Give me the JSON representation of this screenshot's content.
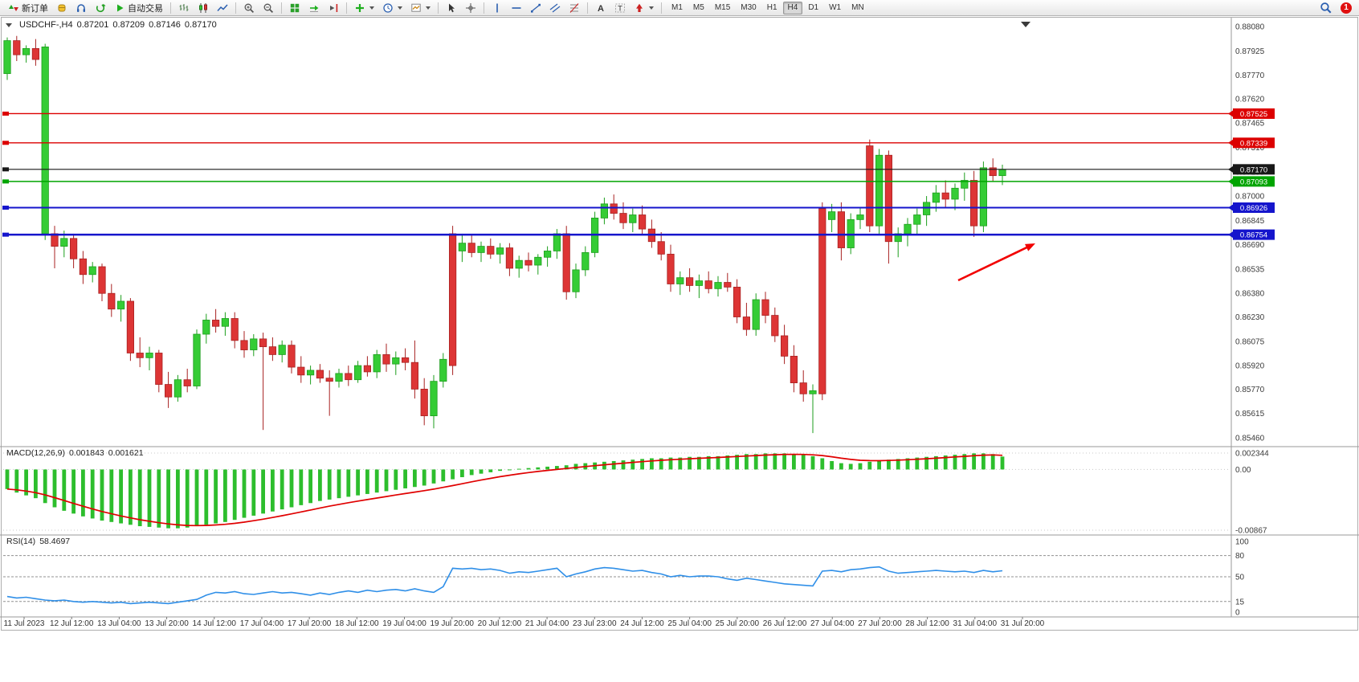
{
  "toolbar": {
    "new_order_label": "新订单",
    "autotrading_label": "自动交易",
    "timeframes": [
      "M1",
      "M5",
      "M15",
      "M30",
      "H1",
      "H4",
      "D1",
      "W1",
      "MN"
    ],
    "active_timeframe": "H4",
    "badge_count": "1",
    "icons": {
      "trade": [
        "new-order",
        "profiles",
        "market-watch",
        "scripts",
        "autotrading"
      ],
      "chart": [
        "bars-chart",
        "candlestick-chart",
        "line-chart",
        "zoom-in",
        "zoom-out",
        "tile-windows",
        "auto-scroll",
        "chart-shift",
        "indicators",
        "periods",
        "templates"
      ],
      "objects": [
        "cursor",
        "crosshair",
        "vertical-line",
        "horizontal-line",
        "trend-line",
        "channel",
        "fibonacci",
        "text",
        "text-label",
        "arrows"
      ],
      "right": [
        "search",
        "notification"
      ]
    }
  },
  "chart": {
    "title": {
      "symbol_period": "USDCHF-,H4",
      "open": "0.87201",
      "high": "0.87209",
      "low": "0.87146",
      "close": "0.87170"
    },
    "price_axis_labels": [
      "0.88080",
      "0.87925",
      "0.87770",
      "0.87620",
      "0.87465",
      "0.87310",
      "0.87155",
      "0.87000",
      "0.86845",
      "0.86690",
      "0.86535",
      "0.86380",
      "0.86230",
      "0.86075",
      "0.85920",
      "0.85770",
      "0.85615",
      "0.85460"
    ],
    "time_axis_labels": [
      "11 Jul 2023",
      "12 Jul 12:00",
      "13 Jul 04:00",
      "13 Jul 20:00",
      "14 Jul 12:00",
      "17 Jul 04:00",
      "17 Jul 20:00",
      "18 Jul 12:00",
      "19 Jul 04:00",
      "19 Jul 20:00",
      "20 Jul 12:00",
      "21 Jul 04:00",
      "23 Jul 23:00",
      "24 Jul 12:00",
      "25 Jul 04:00",
      "25 Jul 20:00",
      "26 Jul 12:00",
      "27 Jul 04:00",
      "27 Jul 20:00",
      "28 Jul 12:00",
      "31 Jul 04:00",
      "31 Jul 20:00"
    ],
    "levels": [
      {
        "label": "0.87525",
        "value": 0.87525,
        "color": "#dc0000",
        "width": 1.3
      },
      {
        "label": "0.87339",
        "value": 0.87339,
        "color": "#dc0000",
        "width": 1.3
      },
      {
        "label": "0.87170",
        "value": 0.8717,
        "color": "#181818",
        "width": 1.1
      },
      {
        "label": "0.87093",
        "value": 0.87093,
        "color": "#00a400",
        "width": 1.6
      },
      {
        "label": "0.86926",
        "value": 0.86926,
        "color": "#1515cc",
        "width": 2.0
      },
      {
        "label": "0.86754",
        "value": 0.86754,
        "color": "#1515cc",
        "width": 2.4
      }
    ]
  },
  "chart_data": {
    "type": "candlestick",
    "symbol": "USDCHF",
    "timeframe": "H4",
    "price_range": {
      "top": 0.8808,
      "bottom": 0.8546
    },
    "colors": {
      "up": "#35cc35",
      "down": "#dd3535",
      "macd_hist": "#2dbe2d",
      "macd_signal": "#e00000",
      "rsi_line": "#2f8fe8"
    },
    "candles": [
      [
        0.8778,
        0.8801,
        0.8774,
        0.8799
      ],
      [
        0.8799,
        0.8802,
        0.8786,
        0.879
      ],
      [
        0.879,
        0.8796,
        0.8785,
        0.8794
      ],
      [
        0.8794,
        0.88,
        0.8783,
        0.8787
      ],
      [
        0.8676,
        0.8797,
        0.8672,
        0.8795
      ],
      [
        0.8676,
        0.8681,
        0.8654,
        0.8668
      ],
      [
        0.8668,
        0.8678,
        0.8661,
        0.8673
      ],
      [
        0.8673,
        0.8676,
        0.8654,
        0.866
      ],
      [
        0.866,
        0.8665,
        0.8644,
        0.865
      ],
      [
        0.865,
        0.8658,
        0.8645,
        0.8655
      ],
      [
        0.8655,
        0.8657,
        0.8633,
        0.8638
      ],
      [
        0.8638,
        0.8644,
        0.8623,
        0.8628
      ],
      [
        0.8628,
        0.8637,
        0.862,
        0.8633
      ],
      [
        0.8633,
        0.8635,
        0.8595,
        0.86
      ],
      [
        0.86,
        0.861,
        0.8591,
        0.8597
      ],
      [
        0.8597,
        0.8604,
        0.8589,
        0.86
      ],
      [
        0.86,
        0.8602,
        0.8575,
        0.858
      ],
      [
        0.858,
        0.8588,
        0.8565,
        0.8572
      ],
      [
        0.8572,
        0.8586,
        0.8569,
        0.8583
      ],
      [
        0.8583,
        0.859,
        0.8575,
        0.8579
      ],
      [
        0.8579,
        0.8615,
        0.8577,
        0.8612
      ],
      [
        0.8612,
        0.8625,
        0.8606,
        0.8621
      ],
      [
        0.8621,
        0.8628,
        0.8613,
        0.8617
      ],
      [
        0.8617,
        0.8626,
        0.8611,
        0.8622
      ],
      [
        0.8622,
        0.8626,
        0.8603,
        0.8608
      ],
      [
        0.8608,
        0.8614,
        0.8597,
        0.8602
      ],
      [
        0.8602,
        0.8612,
        0.8598,
        0.8609
      ],
      [
        0.8609,
        0.8613,
        0.8551,
        0.8604
      ],
      [
        0.8604,
        0.861,
        0.8595,
        0.8599
      ],
      [
        0.8599,
        0.8608,
        0.8594,
        0.8605
      ],
      [
        0.8605,
        0.8608,
        0.8587,
        0.8591
      ],
      [
        0.8591,
        0.8598,
        0.8581,
        0.8586
      ],
      [
        0.8586,
        0.8592,
        0.858,
        0.8589
      ],
      [
        0.8589,
        0.8593,
        0.8581,
        0.8584
      ],
      [
        0.8584,
        0.8589,
        0.856,
        0.8582
      ],
      [
        0.8582,
        0.859,
        0.8578,
        0.8587
      ],
      [
        0.8587,
        0.8592,
        0.8579,
        0.8583
      ],
      [
        0.8583,
        0.8595,
        0.8581,
        0.8592
      ],
      [
        0.8592,
        0.8598,
        0.8585,
        0.8588
      ],
      [
        0.8588,
        0.8602,
        0.8584,
        0.8599
      ],
      [
        0.8599,
        0.8606,
        0.8588,
        0.8593
      ],
      [
        0.8593,
        0.8601,
        0.8586,
        0.8597
      ],
      [
        0.8597,
        0.8603,
        0.8589,
        0.8594
      ],
      [
        0.8594,
        0.8608,
        0.8571,
        0.8577
      ],
      [
        0.8577,
        0.8584,
        0.8554,
        0.856
      ],
      [
        0.856,
        0.8586,
        0.8552,
        0.8582
      ],
      [
        0.8582,
        0.86,
        0.8578,
        0.8596
      ],
      [
        0.8676,
        0.8681,
        0.8586,
        0.8592
      ],
      [
        0.8665,
        0.8676,
        0.8658,
        0.867
      ],
      [
        0.867,
        0.8675,
        0.8661,
        0.8664
      ],
      [
        0.8664,
        0.8671,
        0.8658,
        0.8668
      ],
      [
        0.8668,
        0.8673,
        0.866,
        0.8663
      ],
      [
        0.8663,
        0.867,
        0.8657,
        0.8667
      ],
      [
        0.8667,
        0.867,
        0.8649,
        0.8654
      ],
      [
        0.8654,
        0.8662,
        0.8648,
        0.8659
      ],
      [
        0.8659,
        0.8664,
        0.8652,
        0.8656
      ],
      [
        0.8656,
        0.8663,
        0.865,
        0.8661
      ],
      [
        0.8661,
        0.8668,
        0.8655,
        0.8665
      ],
      [
        0.8665,
        0.8679,
        0.866,
        0.8676
      ],
      [
        0.8676,
        0.8681,
        0.8634,
        0.8639
      ],
      [
        0.8639,
        0.8657,
        0.8635,
        0.8653
      ],
      [
        0.8653,
        0.8668,
        0.8649,
        0.8664
      ],
      [
        0.8664,
        0.869,
        0.8661,
        0.8686
      ],
      [
        0.8686,
        0.8699,
        0.8682,
        0.8695
      ],
      [
        0.8695,
        0.8701,
        0.8685,
        0.8689
      ],
      [
        0.8689,
        0.8696,
        0.8679,
        0.8683
      ],
      [
        0.8683,
        0.8692,
        0.8677,
        0.8688
      ],
      [
        0.8688,
        0.8694,
        0.8675,
        0.8679
      ],
      [
        0.8679,
        0.8685,
        0.8667,
        0.8671
      ],
      [
        0.8671,
        0.8677,
        0.8659,
        0.8663
      ],
      [
        0.8663,
        0.8669,
        0.8639,
        0.8644
      ],
      [
        0.8644,
        0.8652,
        0.8637,
        0.8648
      ],
      [
        0.8648,
        0.8654,
        0.8639,
        0.8643
      ],
      [
        0.8643,
        0.865,
        0.8635,
        0.8646
      ],
      [
        0.8646,
        0.8652,
        0.8638,
        0.8641
      ],
      [
        0.8641,
        0.8649,
        0.8636,
        0.8645
      ],
      [
        0.8645,
        0.8651,
        0.8639,
        0.8642
      ],
      [
        0.8642,
        0.8647,
        0.8619,
        0.8623
      ],
      [
        0.8623,
        0.8632,
        0.8611,
        0.8615
      ],
      [
        0.8615,
        0.8638,
        0.8611,
        0.8634
      ],
      [
        0.8634,
        0.8639,
        0.8619,
        0.8624
      ],
      [
        0.8624,
        0.8629,
        0.8607,
        0.8611
      ],
      [
        0.8611,
        0.8618,
        0.8593,
        0.8598
      ],
      [
        0.8598,
        0.8605,
        0.8575,
        0.8581
      ],
      [
        0.8581,
        0.8589,
        0.8569,
        0.8574
      ],
      [
        0.8574,
        0.858,
        0.8549,
        0.8576
      ],
      [
        0.8692,
        0.8696,
        0.857,
        0.8574
      ],
      [
        0.8685,
        0.8695,
        0.8677,
        0.869
      ],
      [
        0.869,
        0.8696,
        0.8659,
        0.8667
      ],
      [
        0.8667,
        0.8689,
        0.8663,
        0.8685
      ],
      [
        0.8685,
        0.8693,
        0.8679,
        0.8688
      ],
      [
        0.8732,
        0.8736,
        0.8677,
        0.8681
      ],
      [
        0.8681,
        0.873,
        0.8676,
        0.8726
      ],
      [
        0.8726,
        0.8729,
        0.8657,
        0.8671
      ],
      [
        0.8671,
        0.868,
        0.8661,
        0.8676
      ],
      [
        0.8676,
        0.8686,
        0.8668,
        0.8682
      ],
      [
        0.8682,
        0.8692,
        0.8675,
        0.8688
      ],
      [
        0.8688,
        0.87,
        0.8681,
        0.8696
      ],
      [
        0.8696,
        0.8707,
        0.869,
        0.8702
      ],
      [
        0.8702,
        0.871,
        0.8693,
        0.8698
      ],
      [
        0.8698,
        0.8708,
        0.8691,
        0.8705
      ],
      [
        0.8705,
        0.8715,
        0.8697,
        0.871
      ],
      [
        0.871,
        0.8716,
        0.8674,
        0.8681
      ],
      [
        0.8681,
        0.8722,
        0.8677,
        0.8718
      ],
      [
        0.8718,
        0.8724,
        0.8709,
        0.8713
      ],
      [
        0.8713,
        0.872,
        0.8707,
        0.8717
      ]
    ],
    "macd": {
      "label": "MACD(12,26,9)",
      "value_main": "0.001843",
      "value_signal": "0.001621",
      "max": 0.002344,
      "min": -0.00867,
      "scale_labels": [
        "0.002344",
        "0.00",
        "-0.00867"
      ],
      "hist": [
        -0.0028,
        -0.0033,
        -0.0037,
        -0.0041,
        -0.0048,
        -0.0054,
        -0.0059,
        -0.0063,
        -0.0067,
        -0.007,
        -0.0073,
        -0.0075,
        -0.0077,
        -0.0079,
        -0.0081,
        -0.0082,
        -0.0083,
        -0.0084,
        -0.0084,
        -0.0083,
        -0.0081,
        -0.0079,
        -0.0077,
        -0.0075,
        -0.0072,
        -0.0069,
        -0.0066,
        -0.0063,
        -0.006,
        -0.0057,
        -0.0054,
        -0.0051,
        -0.0048,
        -0.0045,
        -0.0043,
        -0.0041,
        -0.0039,
        -0.0037,
        -0.0035,
        -0.0033,
        -0.0031,
        -0.0029,
        -0.0027,
        -0.0025,
        -0.0023,
        -0.002,
        -0.0017,
        -0.0014,
        -0.0011,
        -0.0008,
        -0.0006,
        -0.0004,
        -0.0002,
        -0.0001,
        0.0001,
        0.0002,
        0.0003,
        0.0004,
        0.0005,
        0.0006,
        0.0008,
        0.0009,
        0.001,
        0.0011,
        0.0012,
        0.0013,
        0.0014,
        0.0015,
        0.0016,
        0.0016,
        0.0017,
        0.0017,
        0.0018,
        0.0018,
        0.0019,
        0.0019,
        0.002,
        0.0021,
        0.0022,
        0.0022,
        0.0023,
        0.0023,
        0.0023,
        0.0022,
        0.0021,
        0.0019,
        0.0016,
        0.0012,
        0.0009,
        0.0008,
        0.0009,
        0.0011,
        0.0012,
        0.0014,
        0.0015,
        0.0016,
        0.0017,
        0.0018,
        0.0019,
        0.002,
        0.0021,
        0.0022,
        0.0023,
        0.0023,
        0.0022,
        0.001843
      ]
    },
    "rsi": {
      "label": "RSI(14)",
      "value": "58.4697",
      "levels": [
        80,
        50,
        15
      ],
      "scale_labels": [
        "100",
        "80",
        "50",
        "15",
        "0"
      ],
      "values": [
        22,
        20,
        21,
        19,
        17,
        16,
        17,
        15,
        14,
        15,
        14,
        13,
        14,
        12,
        13,
        14,
        13,
        12,
        14,
        16,
        18,
        24,
        28,
        27,
        29,
        26,
        25,
        27,
        29,
        27,
        28,
        26,
        24,
        27,
        25,
        28,
        30,
        28,
        31,
        29,
        31,
        32,
        30,
        33,
        30,
        28,
        36,
        62,
        61,
        62,
        60,
        61,
        59,
        55,
        57,
        56,
        58,
        60,
        62,
        50,
        54,
        57,
        61,
        63,
        62,
        60,
        58,
        59,
        56,
        54,
        50,
        52,
        50,
        51,
        51,
        50,
        47,
        45,
        48,
        46,
        44,
        42,
        40,
        39,
        38,
        37,
        58,
        59,
        57,
        60,
        61,
        63,
        64,
        58,
        55,
        56,
        57,
        58,
        59,
        58,
        57,
        58,
        56,
        59,
        57,
        58.47
      ]
    },
    "annotation": {
      "type": "arrow",
      "color": "#f20000",
      "from": [
        1193,
        349
      ],
      "to": [
        1289,
        303
      ]
    }
  }
}
